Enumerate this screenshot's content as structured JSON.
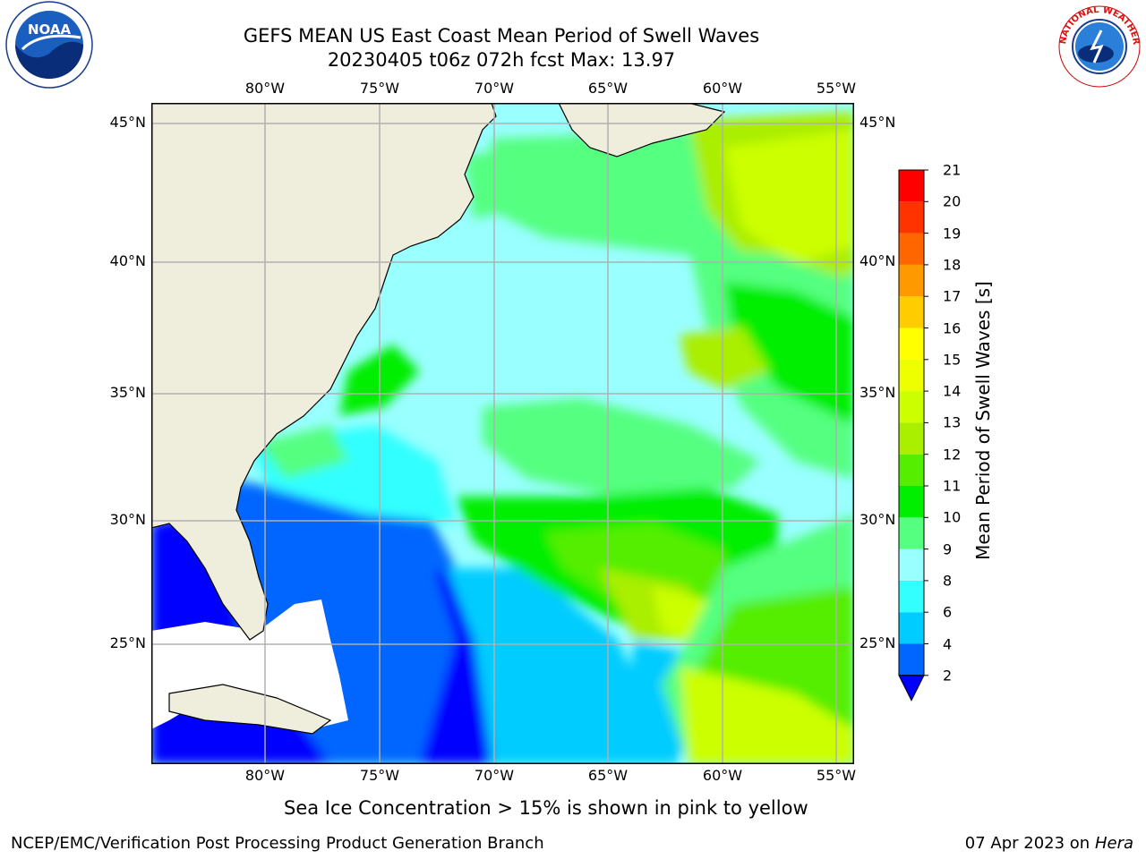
{
  "header": {
    "title_line1": "GEFS MEAN US East Coast Mean Period of Swell Waves",
    "title_line2": "20230405 t06z 072h fcst   Max: 13.97"
  },
  "logos": {
    "noaa": "NOAA",
    "nws": "NATIONAL WEATHER SERVICE"
  },
  "map": {
    "lon_labels": [
      "80°W",
      "75°W",
      "70°W",
      "65°W",
      "60°W",
      "55°W"
    ],
    "lat_labels": [
      "45°N",
      "40°N",
      "35°N",
      "30°N",
      "25°N"
    ],
    "lon_range": [
      -85,
      -54
    ],
    "lat_range": [
      20.5,
      45.8
    ],
    "gridlines": true
  },
  "colorbar": {
    "label": "Mean Period of Swell Waves [s]",
    "ticks": [
      "2",
      "4",
      "6",
      "8",
      "9",
      "10",
      "11",
      "12",
      "13",
      "14",
      "15",
      "16",
      "17",
      "18",
      "19",
      "20",
      "21"
    ],
    "colors": [
      "#0066ff",
      "#00ccff",
      "#33ffff",
      "#99ffff",
      "#55ff80",
      "#00ee00",
      "#55ee00",
      "#aaee00",
      "#ccff00",
      "#eeff00",
      "#ffff00",
      "#ffcc00",
      "#ff9900",
      "#ff6600",
      "#ff3300",
      "#ff0000"
    ],
    "extend_color": "#0000ff"
  },
  "note": "Sea Ice Concentration > 15% is shown in pink to yellow",
  "footer": {
    "left": "NCEP/EMC/Verification Post Processing Product Generation Branch",
    "date": "07 Apr 2023 on ",
    "machine": "Hera"
  },
  "colors": {
    "land": "#efeddc",
    "grid": "#b0b0b0",
    "open_ocean_low": "#0000ff"
  }
}
